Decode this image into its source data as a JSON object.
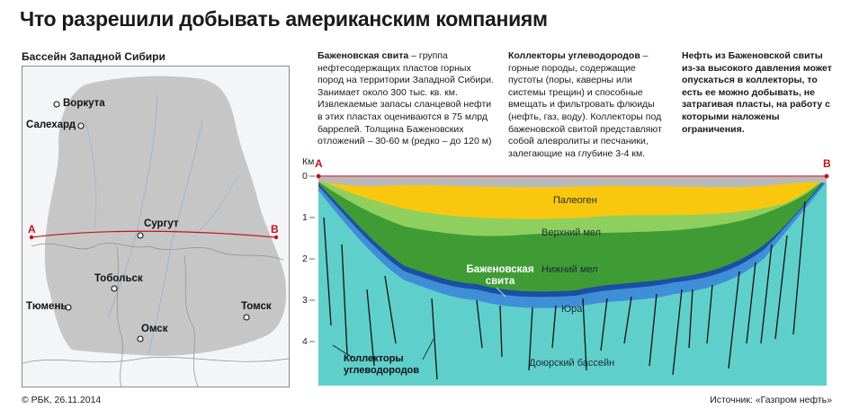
{
  "title": "Что разрешили добывать американским компаниям",
  "map": {
    "caption": "Бассейн Западной Сибири",
    "cities": {
      "vorkuta": "Воркута",
      "salekhard": "Салехард",
      "surgut": "Сургут",
      "tobolsk": "Тобольск",
      "tyumen": "Тюмень",
      "tomsk": "Томск",
      "omsk": "Омск"
    },
    "point_a": "А",
    "point_b": "В"
  },
  "text": {
    "col1_term": "Баженовская свита",
    "col1_body": " – группа нефтесодержащих пластов горных пород на территории Западной Сибири. Занимает около 300 тыс. кв. км. Извлекаемые запасы сланцевой нефти в этих пластах оцениваются в 75 млрд баррелей. Толщина Баженовских отложений – 30-60 м (редко – до 120 м)",
    "col2_term": "Коллекторы углеводородов",
    "col2_body": " – горные породы, содержащие пустоты (поры, каверны или системы трещин) и способные вмещать и фильтровать флюиды (нефть, газ, воду). Коллекторы под баженовской свитой представляют собой алевролиты и песчаники, залегающие на глубине 3-4 км.",
    "col3": "Нефть из Баженовской свиты из-за высокого давления может опускаться в коллекторы, то есть ее можно добывать, не затрагивая пласты, на работу с которыми наложены ограничения."
  },
  "profile": {
    "depth_unit": "Км",
    "depths": [
      "0",
      "1",
      "2",
      "3",
      "4"
    ],
    "point_a": "А",
    "point_b": "В",
    "layers": {
      "paleogene": "Палеоген",
      "upper_cretaceous": "Верхний мел",
      "lower_cretaceous": "Нижний мел",
      "jurassic": "Юра",
      "pre_jurassic": "Доюрский бассейн"
    },
    "bazhenov_label": "Баженовская свита",
    "collectors_label": "Коллекторы углеводородов",
    "colors": {
      "paleogene": "#f9c80e",
      "upper_cretaceous": "#8fcf5e",
      "lower_cretaceous": "#3f9c35",
      "bazhenov": "#1c4fa3",
      "jurassic": "#3f8fd8",
      "pre_jurassic": "#5fcfcb",
      "section_line": "#c4141b"
    }
  },
  "footer": {
    "copyright": "© РБК, 26.11.2014",
    "source": "Источник: «Газпром нефть»"
  }
}
